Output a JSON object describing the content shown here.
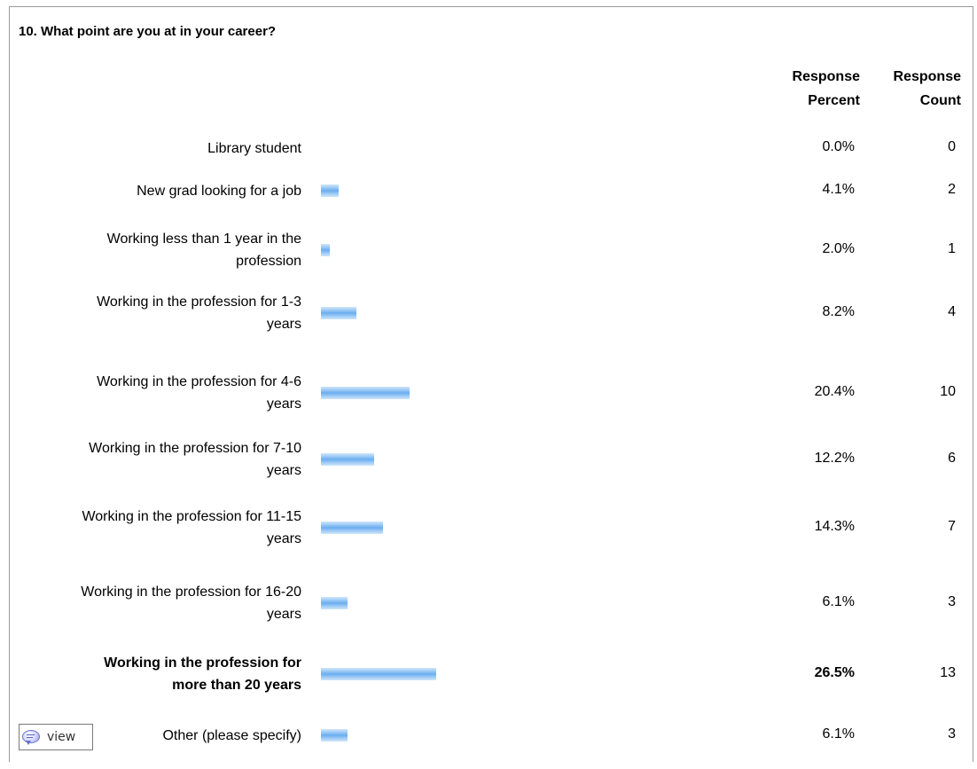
{
  "question": "10. What point are you at in your career?",
  "headers": {
    "percent_line1": "Response",
    "percent_line2": "Percent",
    "count_line1": "Response",
    "count_line2": "Count"
  },
  "view_button": {
    "label": "view",
    "icon": "speech-bubble-icon"
  },
  "colors": {
    "bar": "#6aaef0",
    "border": "#9a9a9a"
  },
  "chart_data": {
    "type": "bar",
    "orientation": "horizontal",
    "title": "10. What point are you at in your career?",
    "categories": [
      "Library student",
      "New grad looking for a job",
      "Working less than 1 year in the profession",
      "Working in the profession for 1-3 years",
      "Working in the profession for 4-6 years",
      "Working in the profession for 7-10 years",
      "Working in the profession for 11-15 years",
      "Working in the profession for 16-20 years",
      "Working in the profession for more than 20 years",
      "Other (please specify)"
    ],
    "label_lines": [
      [
        "Library student"
      ],
      [
        "New grad looking for a job"
      ],
      [
        "Working less than 1 year in the",
        "profession"
      ],
      [
        "Working in the profession for 1-3",
        "years"
      ],
      [
        "Working in the profession for 4-6",
        "years"
      ],
      [
        "Working in the profession for 7-10",
        "years"
      ],
      [
        "Working in the profession for 11-15",
        "years"
      ],
      [
        "Working in the profession for 16-20",
        "years"
      ],
      [
        "Working in the profession for",
        "more than 20 years"
      ],
      [
        "Other (please specify)"
      ]
    ],
    "values": [
      0.0,
      4.1,
      2.0,
      8.2,
      20.4,
      12.2,
      14.3,
      6.1,
      26.5,
      6.1
    ],
    "percent_labels": [
      "0.0%",
      "4.1%",
      "2.0%",
      "8.2%",
      "20.4%",
      "12.2%",
      "14.3%",
      "6.1%",
      "26.5%",
      "6.1%"
    ],
    "counts": [
      "0",
      "2",
      "1",
      "4",
      "10",
      "6",
      "7",
      "3",
      "13",
      "3"
    ],
    "highlighted_index": 8,
    "xlim": [
      0,
      100
    ]
  }
}
